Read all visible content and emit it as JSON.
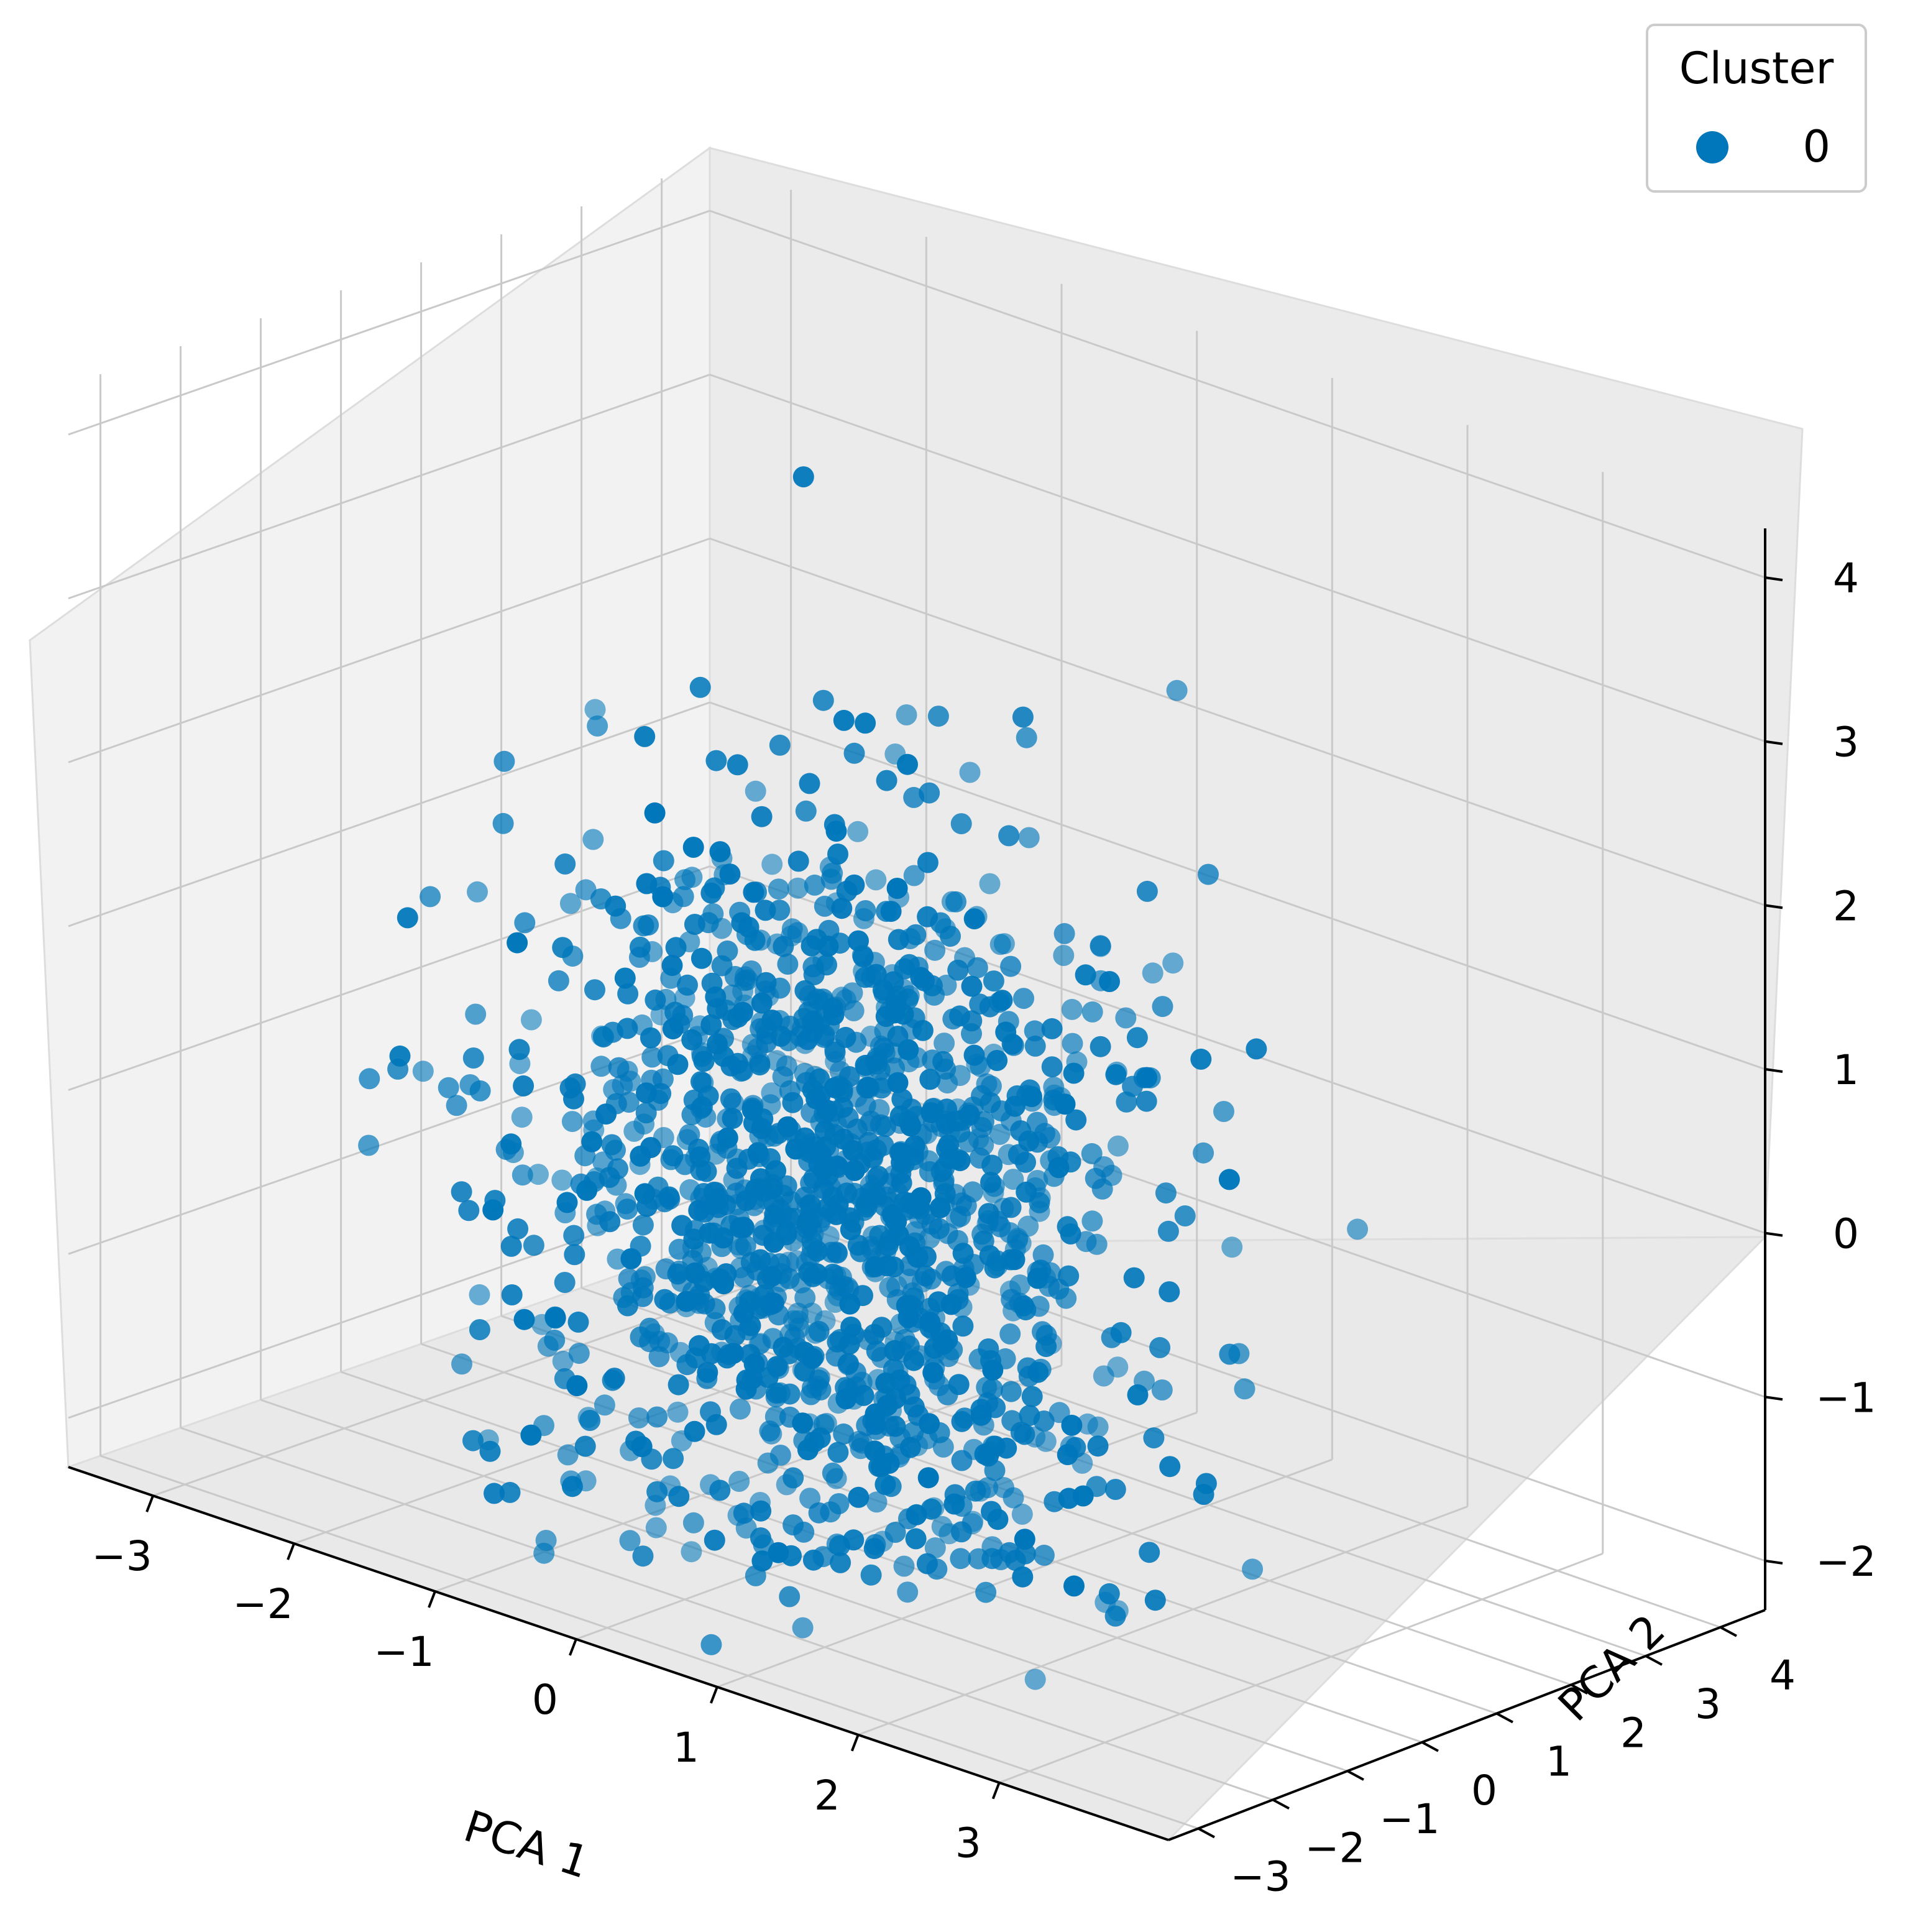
{
  "chart_data": {
    "type": "scatter3d",
    "title": "",
    "xlabel": "PCA 1",
    "ylabel": "PCA 2",
    "zlabel": "",
    "xlim": [
      -3.6,
      4.2
    ],
    "ylim": [
      -3.4,
      4.6
    ],
    "zlim": [
      -2.3,
      4.3
    ],
    "xticks": [
      "−3",
      "−2",
      "−1",
      "0",
      "1",
      "2",
      "3"
    ],
    "yticks": [
      "−3",
      "−2",
      "−1",
      "0",
      "1",
      "2",
      "3",
      "4"
    ],
    "zticks": [
      "−2",
      "−1",
      "0",
      "1",
      "2",
      "3",
      "4"
    ],
    "grid": true,
    "legend": {
      "title": "Cluster",
      "placement": "top-right",
      "entries": [
        "0"
      ]
    },
    "series": [
      {
        "name": "0",
        "color": "#0077bb",
        "approx_count": 1400,
        "distribution": "multivariate normal, mean ≈ [0, 0, 0], sd ≈ [1.0, 1.0, 1.1], z clipped to [−2.3, 4.0]"
      }
    ]
  }
}
